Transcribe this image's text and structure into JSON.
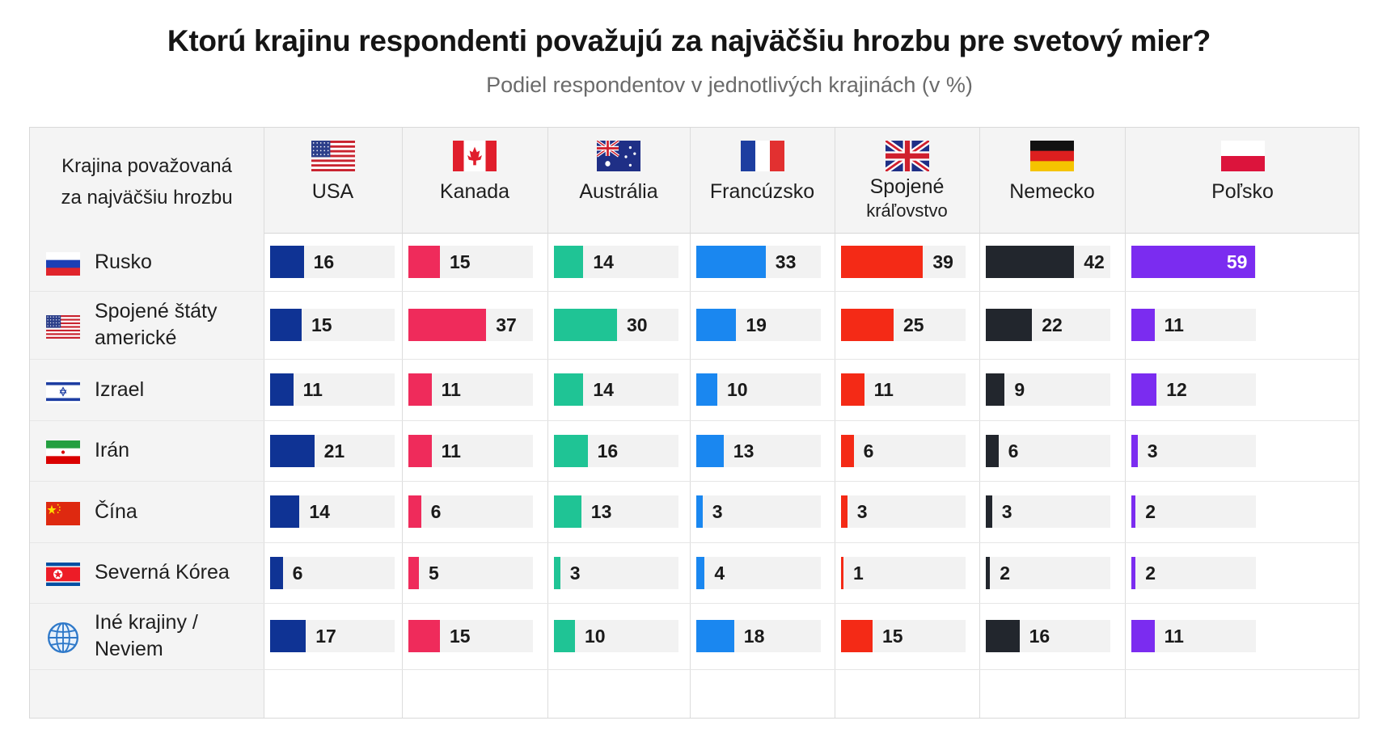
{
  "chart_data": {
    "type": "bar",
    "title": "Ktorú krajinu respondenti považujú za najväčšiu hrozbu pre svetový mier?",
    "subtitle": "Podiel respondentov v jednotlivých krajinách (v %)",
    "row_header": "Krajina považovaná\nza najväčšiu hrozbu",
    "categories": [
      "Rusko",
      "Spojené štáty americké",
      "Izrael",
      "Irán",
      "Čína",
      "Severná Kórea",
      "Iné krajiny / Neviem"
    ],
    "category_lines": [
      [
        "Rusko"
      ],
      [
        "Spojené štáty",
        "americké"
      ],
      [
        "Izrael"
      ],
      [
        "Irán"
      ],
      [
        "Čína"
      ],
      [
        "Severná Kórea"
      ],
      [
        "Iné krajiny /",
        "Neviem"
      ]
    ],
    "category_icons": [
      "flag-russia-icon",
      "flag-usa-icon",
      "flag-israel-icon",
      "flag-iran-icon",
      "flag-china-icon",
      "flag-north-korea-icon",
      "globe-icon"
    ],
    "series": [
      {
        "name": "USA",
        "name_lines": [
          "USA"
        ],
        "icon": "flag-usa-icon",
        "color": "#0f3394",
        "values": [
          16,
          15,
          11,
          21,
          14,
          6,
          17
        ]
      },
      {
        "name": "Kanada",
        "name_lines": [
          "Kanada"
        ],
        "icon": "flag-canada-icon",
        "color": "#ef2b5b",
        "values": [
          15,
          37,
          11,
          11,
          6,
          5,
          15
        ]
      },
      {
        "name": "Austrália",
        "name_lines": [
          "Austrália"
        ],
        "icon": "flag-australia-icon",
        "color": "#1fc495",
        "values": [
          14,
          30,
          14,
          16,
          13,
          3,
          10
        ]
      },
      {
        "name": "Francúzsko",
        "name_lines": [
          "Francúzsko"
        ],
        "icon": "flag-france-icon",
        "color": "#1a87f0",
        "values": [
          33,
          19,
          10,
          13,
          3,
          4,
          18
        ]
      },
      {
        "name": "Spojené kráľovstvo",
        "name_lines": [
          "Spojené",
          "kráľovstvo"
        ],
        "icon": "flag-uk-icon",
        "color": "#f42a16",
        "values": [
          39,
          25,
          11,
          6,
          3,
          1,
          15
        ]
      },
      {
        "name": "Nemecko",
        "name_lines": [
          "Nemecko"
        ],
        "icon": "flag-germany-icon",
        "color": "#22262d",
        "values": [
          42,
          22,
          9,
          6,
          3,
          2,
          16
        ]
      },
      {
        "name": "Poľsko",
        "name_lines": [
          "Poľsko"
        ],
        "icon": "flag-poland-icon",
        "color": "#7b2cf0",
        "values": [
          59,
          11,
          12,
          3,
          2,
          2,
          11
        ]
      }
    ],
    "ylim": [
      0,
      60
    ],
    "value_labels": true,
    "legend": "none"
  }
}
